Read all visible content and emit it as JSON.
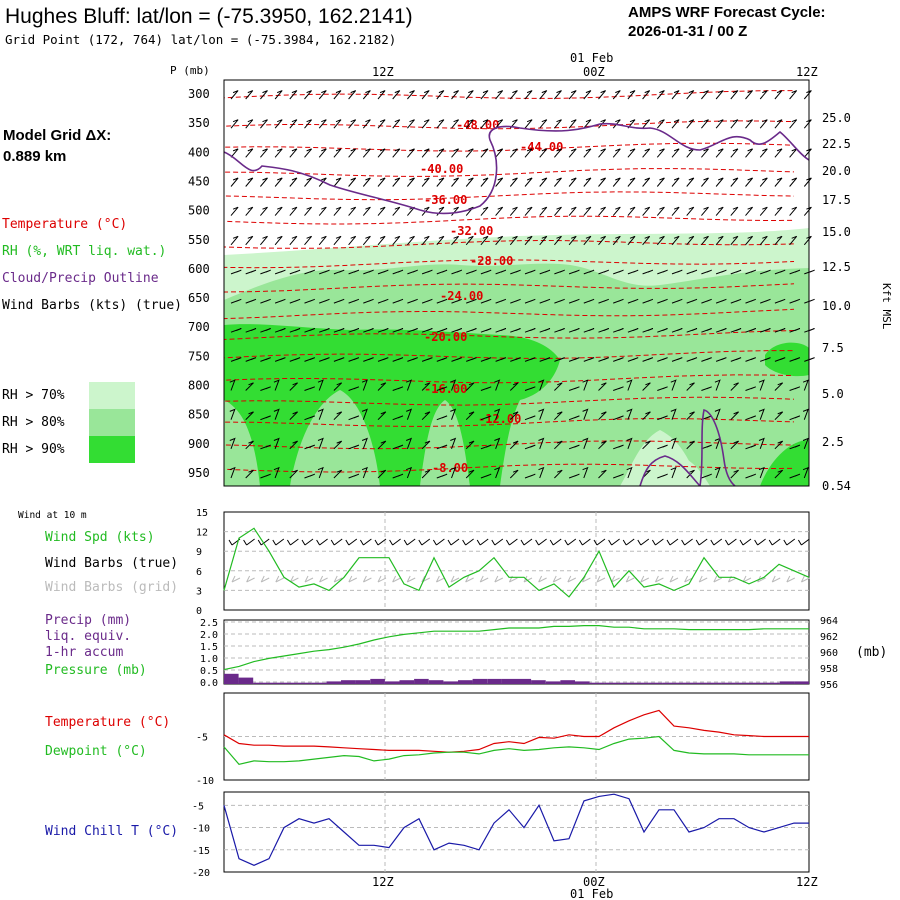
{
  "header": {
    "title": "Hughes Bluff:  lat/lon = (-75.3950, 162.2141)",
    "gridpoint": "Grid Point (172, 764) lat/lon = (-75.3984, 162.2182)",
    "cycle_line1": "AMPS WRF Forecast Cycle:",
    "cycle_line2": "2026-01-31 / 00  Z"
  },
  "left_panel": {
    "model_grid_line1": "Model Grid ΔX:",
    "model_grid_line2": " 0.889 km",
    "legend_temperature": "Temperature (°C)",
    "legend_rh": "RH (%, WRT liq. wat.)",
    "legend_cloud": "Cloud/Precip Outline",
    "legend_wind": "Wind Barbs (kts) (true)",
    "rh_keys": [
      "RH > 70%",
      "RH > 80%",
      "RH > 90%"
    ],
    "rh_colors": [
      "#ccf5cc",
      "#99e699",
      "#33dd33"
    ]
  },
  "time_axis": {
    "top_date": "01 Feb",
    "top_ticks": [
      "12Z",
      "00Z",
      "12Z"
    ],
    "bottom_ticks": [
      "12Z",
      "00Z",
      "12Z"
    ],
    "bottom_date": "01 Feb"
  },
  "chart_data": [
    {
      "type": "heatmap",
      "ylabel": "P (mb)",
      "pressure_levels": [
        300,
        350,
        400,
        450,
        500,
        550,
        600,
        650,
        700,
        750,
        800,
        850,
        900,
        950
      ],
      "right_axis_label": "Kft MSL",
      "right_axis_ticks": [
        "25.0",
        "22.5",
        "20.0",
        "17.5",
        "15.0",
        "12.5",
        "10.0",
        "7.5",
        "5.0",
        "2.5",
        "0.54"
      ],
      "temperature_contour_labels": [
        "-48.00",
        "-44.00",
        "-40.00",
        "-36.00",
        "-32.00",
        "-28.00",
        "-24.00",
        "-20.00",
        "-16.00",
        "-12.00",
        "-8.00"
      ],
      "colors": {
        "temperature": "#dd0000",
        "cloud": "#6a2a8a"
      }
    },
    {
      "type": "line",
      "title": "Wind at 10 m",
      "series": [
        {
          "name": "Wind Spd (kts)",
          "color": "#22bb22",
          "values": [
            3,
            11,
            12.5,
            9,
            5,
            3.5,
            4,
            3,
            5,
            8,
            8,
            8,
            4,
            3,
            8,
            3.5,
            5,
            6,
            8,
            5,
            5,
            3,
            4,
            2,
            5,
            9,
            3.5,
            6,
            3.5,
            4,
            3,
            4,
            8,
            5,
            5,
            4,
            5,
            7,
            6,
            5
          ]
        }
      ],
      "legend": [
        "Wind Spd (kts)",
        "Wind Barbs (true)",
        "Wind Barbs (grid)"
      ],
      "legend_colors": [
        "#22bb22",
        "#000000",
        "#bbbbbb"
      ],
      "yticks": [
        0,
        3,
        6,
        9,
        12,
        15
      ],
      "ylim": [
        0,
        15
      ]
    },
    {
      "type": "bar",
      "series": [
        {
          "name": "Precip (mm)",
          "color": "#6a2a8a",
          "values": [
            0.4,
            0.25,
            0.05,
            0.05,
            0.05,
            0.05,
            0.05,
            0.1,
            0.15,
            0.15,
            0.2,
            0.1,
            0.15,
            0.2,
            0.15,
            0.1,
            0.15,
            0.2,
            0.2,
            0.2,
            0.2,
            0.15,
            0.1,
            0.15,
            0.1,
            0.05,
            0.05,
            0.05,
            0.05,
            0.05,
            0.05,
            0.05,
            0.05,
            0.05,
            0.05,
            0.05,
            0.05,
            0.05,
            0.1,
            0.1
          ]
        },
        {
          "name": "Pressure (mb)",
          "color": "#22bb22",
          "values": [
            957.8,
            958.2,
            958.8,
            959.2,
            959.5,
            959.8,
            960.1,
            960.3,
            960.6,
            961.0,
            961.5,
            961.9,
            962.2,
            962.4,
            962.6,
            962.6,
            962.6,
            962.6,
            962.8,
            963.0,
            963.0,
            963.0,
            963.2,
            963.2,
            963.3,
            963.3,
            963.1,
            963.1,
            962.9,
            962.9,
            962.9,
            962.8,
            962.8,
            962.8,
            962.8,
            962.8,
            962.9,
            962.9,
            962.9,
            962.9
          ]
        }
      ],
      "legend_lines": [
        "Precip (mm)",
        "liq. equiv.",
        "1-hr accum",
        "Pressure (mb)"
      ],
      "left_ticks": [
        "2.5",
        "2.0",
        "1.5",
        "1.0",
        "0.5",
        "0.0"
      ],
      "right_ticks": [
        "964",
        "962",
        "960",
        "958",
        "956"
      ],
      "right_unit": "(mb)",
      "ylim_left": [
        0,
        2.5
      ],
      "ylim_right": [
        956,
        964
      ]
    },
    {
      "type": "line",
      "series": [
        {
          "name": "Temperature (°C)",
          "color": "#dd0000",
          "values": [
            -4.8,
            -5.8,
            -6.0,
            -6.0,
            -6.1,
            -6.1,
            -6.1,
            -6.2,
            -6.3,
            -6.4,
            -6.5,
            -6.6,
            -6.6,
            -6.6,
            -6.7,
            -6.8,
            -6.7,
            -6.5,
            -5.8,
            -5.6,
            -5.8,
            -5.1,
            -5.2,
            -4.8,
            -5.0,
            -5.0,
            -4.0,
            -3.2,
            -2.5,
            -2.0,
            -3.8,
            -4.0,
            -4.3,
            -4.5,
            -4.8,
            -4.9,
            -5.0,
            -5.0,
            -5.0,
            -5.0
          ]
        },
        {
          "name": "Dewpoint (°C)",
          "color": "#22bb22",
          "values": [
            -6.2,
            -8.2,
            -7.8,
            -7.9,
            -7.9,
            -7.8,
            -7.6,
            -7.4,
            -7.2,
            -7.3,
            -7.8,
            -7.6,
            -7.2,
            -7.1,
            -6.9,
            -6.8,
            -6.8,
            -7.0,
            -6.6,
            -6.4,
            -6.6,
            -6.5,
            -6.3,
            -6.2,
            -6.3,
            -6.5,
            -5.8,
            -5.3,
            -5.2,
            -5.0,
            -6.6,
            -6.9,
            -7.0,
            -7.0,
            -7.0,
            -7.1,
            -7.1,
            -7.1,
            -7.1,
            -7.1
          ]
        }
      ],
      "yticks": [
        -10,
        -5
      ],
      "ylim": [
        -10,
        0
      ]
    },
    {
      "type": "line",
      "series": [
        {
          "name": "Wind Chill T (°C)",
          "color": "#1a1aa8",
          "values": [
            -5,
            -17,
            -18.5,
            -17,
            -10,
            -8,
            -9,
            -8,
            -11,
            -14,
            -14,
            -14.5,
            -10,
            -8,
            -15,
            -13.5,
            -14,
            -15,
            -9,
            -6,
            -10,
            -5,
            -13,
            -12.5,
            -4,
            -3,
            -2.5,
            -3.5,
            -11,
            -6,
            -6,
            -11,
            -10,
            -8,
            -8,
            -10,
            -11,
            -10,
            -9,
            -9
          ]
        }
      ],
      "yticks": [
        -5,
        -10,
        -15,
        -20
      ],
      "ylim": [
        -20,
        -2
      ]
    }
  ]
}
